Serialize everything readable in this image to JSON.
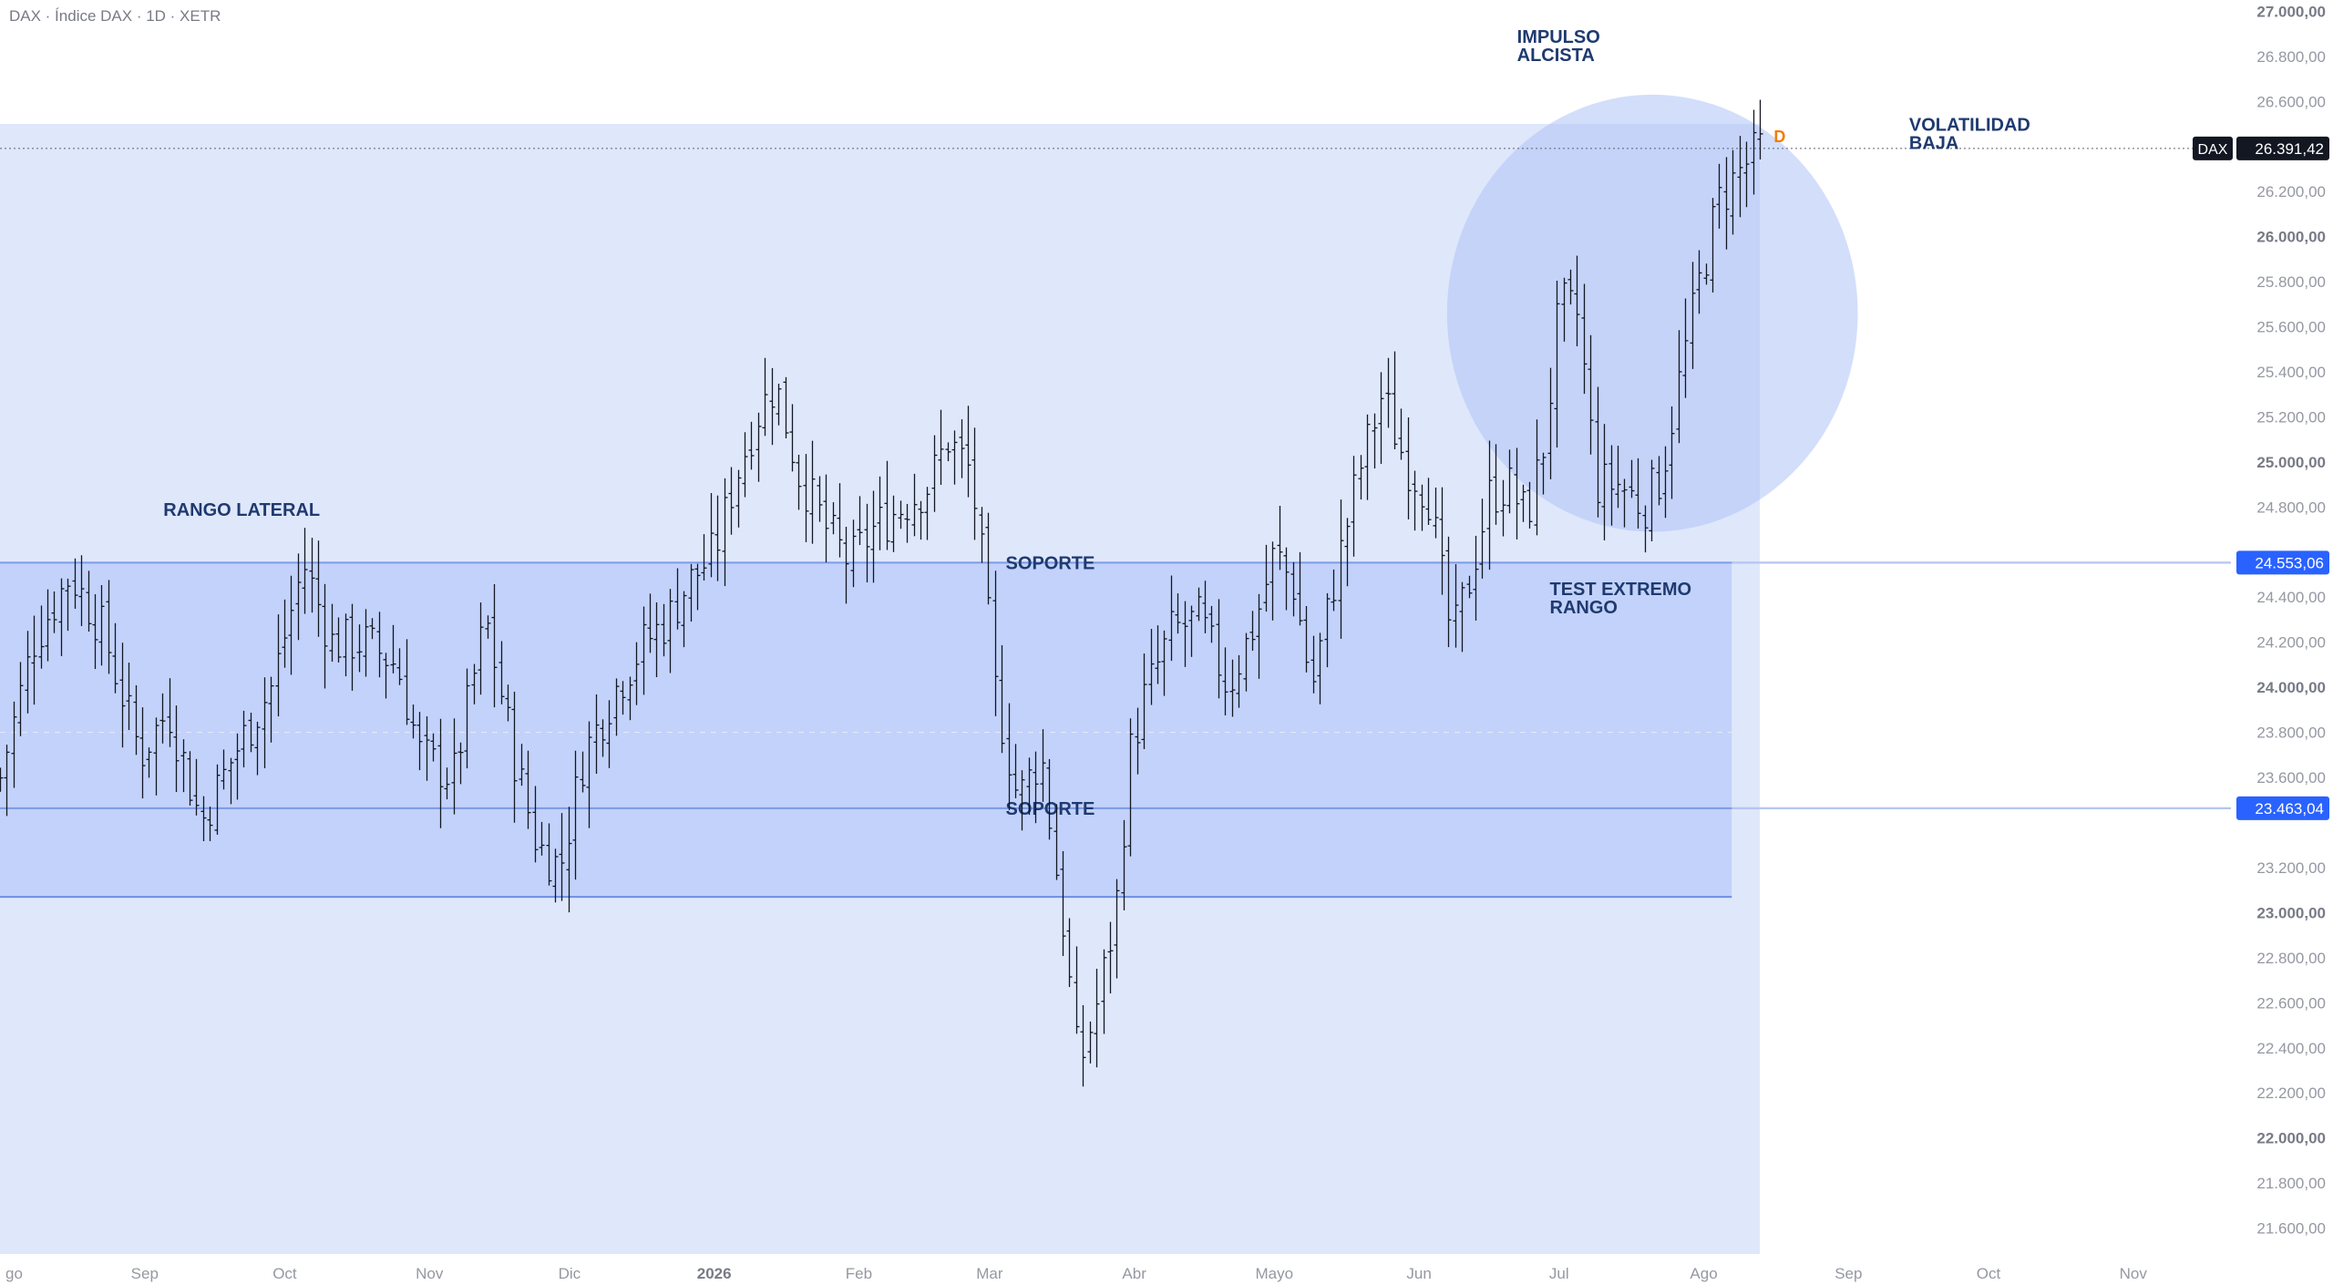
{
  "header": {
    "title": "DAX · Índice DAX · 1D · XETR"
  },
  "colors": {
    "zone_outer": "#dfe7fb",
    "zone_range": "#c3d2fa",
    "circle": "#aec2f7",
    "support_line": "#6d8fe3",
    "level_line": "#b7c7f1",
    "annotation_text": "#1f3a70",
    "axis_text": "#9598a1",
    "axis_text_bold": "#787b86",
    "bar": "#131722",
    "price_tag_bg": "#131722",
    "level_tag_bg": "#2962ff",
    "d_marker": "#f57c00"
  },
  "chart_data": {
    "type": "ohlc-bar",
    "symbol": "DAX",
    "interval": "1D",
    "y_range": [
      21485,
      27050
    ],
    "x_range_days": [
      -25,
      360
    ],
    "y_ticks": [
      {
        "value": 27000,
        "label": "27.000,00",
        "bold": true
      },
      {
        "value": 26800,
        "label": "26.800,00"
      },
      {
        "value": 26600,
        "label": "26.600,00"
      },
      {
        "value": 26200,
        "label": "26.200,00"
      },
      {
        "value": 26000,
        "label": "26.000,00",
        "bold": true
      },
      {
        "value": 25800,
        "label": "25.800,00"
      },
      {
        "value": 25600,
        "label": "25.600,00"
      },
      {
        "value": 25400,
        "label": "25.400,00"
      },
      {
        "value": 25200,
        "label": "25.200,00"
      },
      {
        "value": 25000,
        "label": "25.000,00",
        "bold": true
      },
      {
        "value": 24800,
        "label": "24.800,00"
      },
      {
        "value": 24400,
        "label": "24.400,00"
      },
      {
        "value": 24200,
        "label": "24.200,00"
      },
      {
        "value": 24000,
        "label": "24.000,00",
        "bold": true
      },
      {
        "value": 23800,
        "label": "23.800,00"
      },
      {
        "value": 23600,
        "label": "23.600,00"
      },
      {
        "value": 23200,
        "label": "23.200,00"
      },
      {
        "value": 23000,
        "label": "23.000,00",
        "bold": true
      },
      {
        "value": 22800,
        "label": "22.800,00"
      },
      {
        "value": 22600,
        "label": "22.600,00"
      },
      {
        "value": 22400,
        "label": "22.400,00"
      },
      {
        "value": 22200,
        "label": "22.200,00"
      },
      {
        "value": 22000,
        "label": "22.000,00",
        "bold": true
      },
      {
        "value": 21800,
        "label": "21.800,00"
      },
      {
        "value": 21600,
        "label": "21.600,00"
      }
    ],
    "x_ticks": [
      {
        "day": -25,
        "label": "go"
      },
      {
        "day": 6,
        "label": "Sep"
      },
      {
        "day": 36,
        "label": "Oct"
      },
      {
        "day": 67,
        "label": "Nov"
      },
      {
        "day": 97,
        "label": "Dic"
      },
      {
        "day": 128,
        "label": "2026",
        "bold": true
      },
      {
        "day": 159,
        "label": "Feb"
      },
      {
        "day": 187,
        "label": "Mar"
      },
      {
        "day": 218,
        "label": "Abr"
      },
      {
        "day": 248,
        "label": "Mayo"
      },
      {
        "day": 279,
        "label": "Jun"
      },
      {
        "day": 309,
        "label": "Jul"
      },
      {
        "day": 340,
        "label": "Ago"
      },
      {
        "day": 371,
        "label": "Sep"
      },
      {
        "day": 401,
        "label": "Oct"
      },
      {
        "day": 432,
        "label": "Nov"
      }
    ],
    "last_price": {
      "value": 26391.42,
      "label": "26.391,42",
      "symbol": "DAX"
    },
    "levels": [
      {
        "value": 24553.06,
        "label": "24.553,06"
      },
      {
        "value": 23463.04,
        "label": "23.463,04"
      }
    ],
    "zones": [
      {
        "kind": "outer",
        "day_from": -25,
        "day_to": 352,
        "y_from": 21485,
        "y_to": 26500
      },
      {
        "kind": "range",
        "day_from": -25,
        "day_to": 346,
        "y_from": 23070,
        "y_to": 24553
      }
    ],
    "support_lines": [
      {
        "value": 24553,
        "day_from": -25,
        "day_to": 346,
        "label": "SOPORTE",
        "label_day": 200
      },
      {
        "value": 23463,
        "day_from": -25,
        "day_to": 360,
        "label": "SOPORTE",
        "label_day": 200
      }
    ],
    "circle": {
      "day": 329,
      "value": 25660,
      "radius_days": 44,
      "radius_value": 970
    },
    "annotations": [
      {
        "lines": [
          "IMPULSO",
          "ALCISTA"
        ],
        "day": 300,
        "value": 26860
      },
      {
        "lines": [
          "VOLATILIDAD",
          "BAJA"
        ],
        "day": 384,
        "value": 26470
      },
      {
        "lines": [
          "RANGO LATERAL"
        ],
        "day": 10,
        "value": 24760
      },
      {
        "lines": [
          "TEST EXTREMO",
          "RANGO"
        ],
        "day": 307,
        "value": 24410
      }
    ],
    "marker": {
      "label": "D",
      "day": 355,
      "value": 26420
    },
    "price_anchors": [
      [
        -25,
        23600
      ],
      [
        -18,
        24200
      ],
      [
        -10,
        24500
      ],
      [
        -3,
        24250
      ],
      [
        5,
        23700
      ],
      [
        11,
        23900
      ],
      [
        18,
        23400
      ],
      [
        25,
        23700
      ],
      [
        33,
        24000
      ],
      [
        40,
        24550
      ],
      [
        46,
        24200
      ],
      [
        53,
        24200
      ],
      [
        60,
        24100
      ],
      [
        65,
        23700
      ],
      [
        72,
        23600
      ],
      [
        79,
        24300
      ],
      [
        85,
        23700
      ],
      [
        90,
        23300
      ],
      [
        95,
        23200
      ],
      [
        100,
        23700
      ],
      [
        107,
        24000
      ],
      [
        113,
        24200
      ],
      [
        118,
        24300
      ],
      [
        122,
        24450
      ],
      [
        128,
        24600
      ],
      [
        132,
        24900
      ],
      [
        137,
        25200
      ],
      [
        141,
        25350
      ],
      [
        146,
        24950
      ],
      [
        152,
        24700
      ],
      [
        157,
        24550
      ],
      [
        162,
        24700
      ],
      [
        168,
        24800
      ],
      [
        174,
        24900
      ],
      [
        178,
        25100
      ],
      [
        183,
        24950
      ],
      [
        186,
        24450
      ],
      [
        188,
        24000
      ],
      [
        193,
        23500
      ],
      [
        198,
        23700
      ],
      [
        203,
        22900
      ],
      [
        206,
        22300
      ],
      [
        210,
        22600
      ],
      [
        214,
        23000
      ],
      [
        217,
        23700
      ],
      [
        220,
        23950
      ],
      [
        226,
        24250
      ],
      [
        232,
        24300
      ],
      [
        238,
        24000
      ],
      [
        244,
        24300
      ],
      [
        248,
        24600
      ],
      [
        252,
        24450
      ],
      [
        256,
        24000
      ],
      [
        261,
        24500
      ],
      [
        266,
        24950
      ],
      [
        271,
        25300
      ],
      [
        276,
        25000
      ],
      [
        281,
        24850
      ],
      [
        286,
        24200
      ],
      [
        290,
        24500
      ],
      [
        294,
        24850
      ],
      [
        298,
        24900
      ],
      [
        302,
        24750
      ],
      [
        306,
        25100
      ],
      [
        309,
        25700
      ],
      [
        313,
        25650
      ],
      [
        317,
        24900
      ],
      [
        322,
        24900
      ],
      [
        327,
        24800
      ],
      [
        331,
        24950
      ],
      [
        335,
        25400
      ],
      [
        339,
        25800
      ],
      [
        343,
        26150
      ],
      [
        348,
        26300
      ],
      [
        352,
        26391.42
      ]
    ]
  }
}
